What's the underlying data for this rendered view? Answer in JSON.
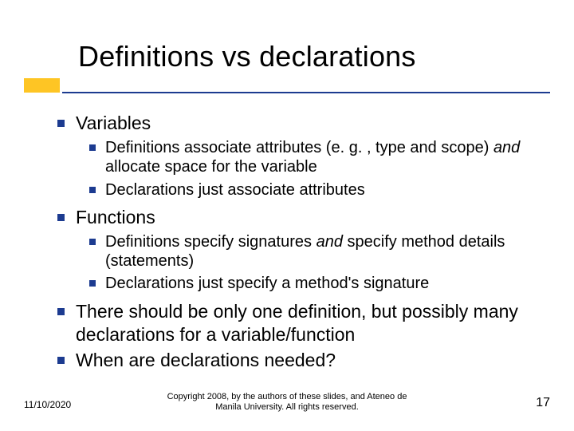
{
  "colors": {
    "accent": "#fec524",
    "underline": "#1c3b90",
    "bullet": "#1c3b90",
    "text": "#000000",
    "background": "#ffffff"
  },
  "title": "Definitions vs declarations",
  "bullets": {
    "b1": "Variables",
    "b1_1a": "Definitions associate attributes (e. g. , type and scope) ",
    "b1_1b": "and",
    "b1_1c": " allocate space for the variable",
    "b1_2": "Declarations just associate attributes",
    "b2": "Functions",
    "b2_1a": "Definitions specify signatures ",
    "b2_1b": "and",
    "b2_1c": " specify method details (statements)",
    "b2_2": "Declarations just specify a method's signature",
    "b3": "There should be only one definition, but possibly many declarations for a variable/function",
    "b4": "When are declarations needed?"
  },
  "footer": {
    "date": "11/10/2020",
    "copyright_l1": "Copyright 2008, by the authors of these slides, and Ateneo de",
    "copyright_l2": "Manila University. All rights reserved.",
    "page": "17"
  },
  "style": {
    "title_fontsize": 36,
    "lvl1_fontsize": 23,
    "lvl2_fontsize": 20,
    "footer_date_fontsize": 12,
    "footer_copy_fontsize": 11,
    "footer_num_fontsize": 16
  }
}
